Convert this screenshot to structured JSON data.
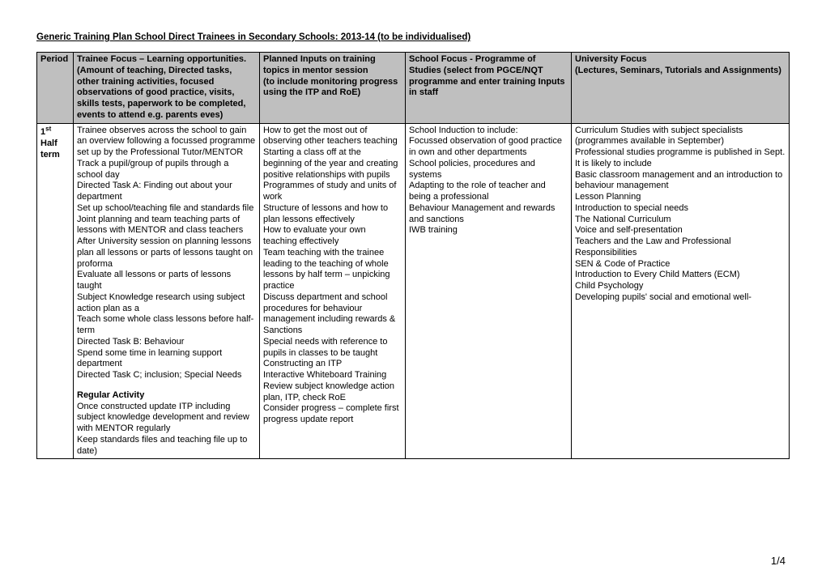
{
  "title": "Generic Training Plan School Direct Trainees in Secondary Schools:  2013-14 (to be individualised)",
  "columns": {
    "period": "Period",
    "trainee": "Trainee Focus – Learning opportunities. (Amount of teaching, Directed tasks, other training activities,  focused observations of good practice, visits, skills tests, paperwork to be completed, events to attend e.g. parents eves)",
    "planned": "Planned Inputs on training topics in mentor session\n(to include monitoring progress using the ITP and RoE)",
    "school": "School Focus - Programme of Studies (select from PGCE/NQT programme and enter training Inputs in staff",
    "university": "University Focus\n(Lectures, Seminars, Tutorials  and Assignments)"
  },
  "row": {
    "period_ord": "1",
    "period_sup": "st",
    "period_rest": "Half term",
    "trainee_lines": [
      "Trainee observes across the school to gain an overview following a focussed programme set up by the Professional Tutor/MENTOR",
      "Track a pupil/group of pupils through a school day",
      "Directed Task A: Finding out about your department",
      "Set up school/teaching file and standards file",
      "Joint planning and team teaching parts of lessons with MENTOR and class teachers",
      "After University session on planning lessons plan all lessons or parts of lessons taught on proforma",
      "Evaluate all lessons or parts of lessons taught",
      "Subject Knowledge research using subject action plan as a",
      "Teach some whole class lessons before half-term",
      "Directed Task B: Behaviour",
      "Spend some time in learning support department",
      "Directed Task C; inclusion; Special Needs"
    ],
    "trainee_regular_label": "Regular Activity",
    "trainee_regular_lines": [
      "Once constructed update ITP including subject knowledge development and review with MENTOR regularly",
      "Keep standards files and teaching file up to date)"
    ],
    "planned_lines": [
      "How to get the most out of observing other teachers teaching",
      "Starting a  class off at the beginning of the year  and creating positive relationships with pupils",
      "Programmes of study and units of work",
      "Structure of lessons and how to plan lessons effectively",
      "How to evaluate your own teaching effectively",
      "Team teaching with the trainee leading to the teaching of whole lessons by half term – unpicking practice",
      "Discuss department and school procedures for behaviour management including rewards & Sanctions",
      "Special needs with reference to pupils in classes to be taught",
      "Constructing an ITP",
      "Interactive Whiteboard Training",
      "Review subject knowledge action plan, ITP, check RoE",
      "Consider progress – complete first progress update report"
    ],
    "school_lines": [
      "School Induction to include:",
      "Focussed observation of good practice in own and other departments",
      "School policies, procedures and systems",
      "Adapting to the role of teacher and being a professional",
      "Behaviour Management and rewards and sanctions",
      "IWB training"
    ],
    "university_lines": [
      "Curriculum Studies with subject specialists",
      "(programmes available in September)",
      "Professional studies programme is published in Sept. It is likely to include",
      "Basic classroom management and an introduction to behaviour management",
      "Lesson Planning",
      "Introduction to special needs",
      "The National Curriculum",
      "Voice and self-presentation",
      "Teachers and the Law and Professional Responsibilities",
      "SEN & Code of Practice",
      "Introduction to Every Child Matters (ECM)",
      "Child Psychology",
      "Developing pupils' social and emotional well-"
    ]
  },
  "page_number": "1/4"
}
